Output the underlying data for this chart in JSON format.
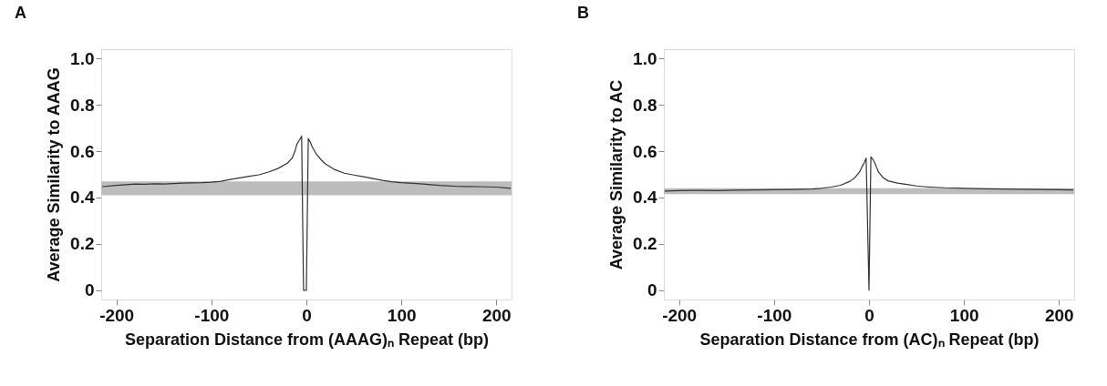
{
  "chart_data": [
    {
      "type": "line",
      "title": "A",
      "xlabel": "Separation Distance from (AAAG)ₙ Repeat (bp)",
      "ylabel": "Average Similarity to AAAG",
      "x": [
        -215,
        -200,
        -190,
        -180,
        -170,
        -160,
        -150,
        -140,
        -130,
        -120,
        -110,
        -100,
        -90,
        -80,
        -70,
        -60,
        -50,
        -40,
        -30,
        -20,
        -15,
        -12,
        -10,
        -7,
        -5,
        -3,
        0,
        2,
        4,
        6,
        10,
        15,
        20,
        30,
        40,
        50,
        60,
        70,
        80,
        90,
        100,
        120,
        140,
        160,
        180,
        200,
        215
      ],
      "series": [
        {
          "color": "#333333",
          "values": [
            0.447,
            0.452,
            0.455,
            0.458,
            0.457,
            0.459,
            0.458,
            0.46,
            0.462,
            0.463,
            0.464,
            0.466,
            0.47,
            0.478,
            0.485,
            0.492,
            0.498,
            0.51,
            0.525,
            0.548,
            0.57,
            0.6,
            0.63,
            0.65,
            0.665,
            0,
            0,
            0.655,
            0.64,
            0.62,
            0.59,
            0.565,
            0.545,
            0.52,
            0.505,
            0.497,
            0.49,
            0.482,
            0.474,
            0.468,
            0.464,
            0.459,
            0.452,
            0.448,
            0.447,
            0.445,
            0.44
          ]
        }
      ],
      "bands": [
        {
          "axis": "y",
          "from": 0.41,
          "to": 0.47,
          "color": "#bdbdbd"
        }
      ],
      "xlim": [
        -216,
        216
      ],
      "xticks": [
        -200,
        -100,
        0,
        100,
        200
      ],
      "ylim": [
        -0.04,
        1.04
      ],
      "yticks": [
        0,
        0.2,
        0.4,
        0.6,
        0.8,
        {
          "value": 1,
          "label": "1.0"
        }
      ],
      "grid": false,
      "line_style": "solid",
      "marker": "none"
    },
    {
      "type": "line",
      "title": "B",
      "xlabel": "Separation Distance from (AC)ₙ Repeat (bp)",
      "ylabel": "Average Similarity to AC",
      "x": [
        -215,
        -200,
        -180,
        -160,
        -140,
        -120,
        -100,
        -80,
        -60,
        -50,
        -40,
        -30,
        -20,
        -15,
        -10,
        -7,
        -5,
        -3,
        0,
        2,
        4,
        6,
        8,
        10,
        15,
        20,
        30,
        40,
        50,
        60,
        70,
        80,
        100,
        120,
        140,
        160,
        180,
        200,
        215
      ],
      "series": [
        {
          "color": "#333333",
          "values": [
            0.428,
            0.43,
            0.431,
            0.43,
            0.432,
            0.433,
            0.434,
            0.435,
            0.437,
            0.44,
            0.445,
            0.453,
            0.47,
            0.485,
            0.51,
            0.535,
            0.55,
            0.57,
            0,
            0.575,
            0.565,
            0.55,
            0.53,
            0.51,
            0.485,
            0.472,
            0.462,
            0.456,
            0.45,
            0.446,
            0.444,
            0.442,
            0.44,
            0.438,
            0.437,
            0.436,
            0.435,
            0.434,
            0.433
          ]
        }
      ],
      "bands": [
        {
          "axis": "y",
          "from": 0.415,
          "to": 0.44,
          "color": "#bdbdbd"
        }
      ],
      "xlim": [
        -216,
        216
      ],
      "xticks": [
        -200,
        -100,
        0,
        100,
        200
      ],
      "ylim": [
        -0.04,
        1.04
      ],
      "yticks": [
        0,
        0.2,
        0.4,
        0.6,
        0.8,
        {
          "value": 1,
          "label": "1.0"
        }
      ],
      "grid": false,
      "line_style": "solid",
      "marker": "none"
    }
  ]
}
